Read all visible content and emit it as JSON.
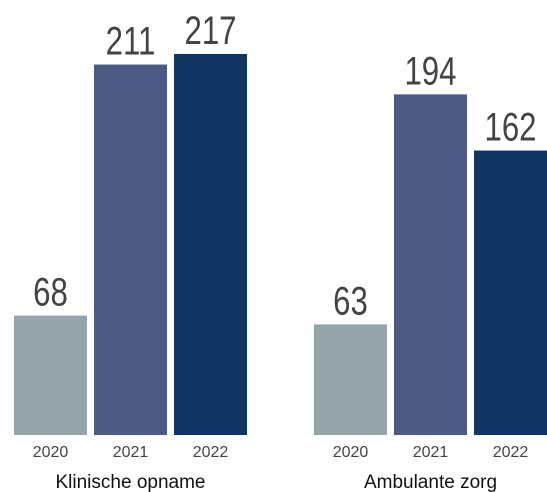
{
  "chart_data": {
    "type": "bar",
    "categories": [
      "Klinische opname",
      "Ambulante zorg"
    ],
    "series": [
      {
        "name": "2020",
        "color": "#95a3aa",
        "values": [
          68,
          63
        ]
      },
      {
        "name": "2021",
        "color": "#4d5a85",
        "values": [
          211,
          194
        ]
      },
      {
        "name": "2022",
        "color": "#123462",
        "values": [
          217,
          162
        ]
      }
    ]
  }
}
